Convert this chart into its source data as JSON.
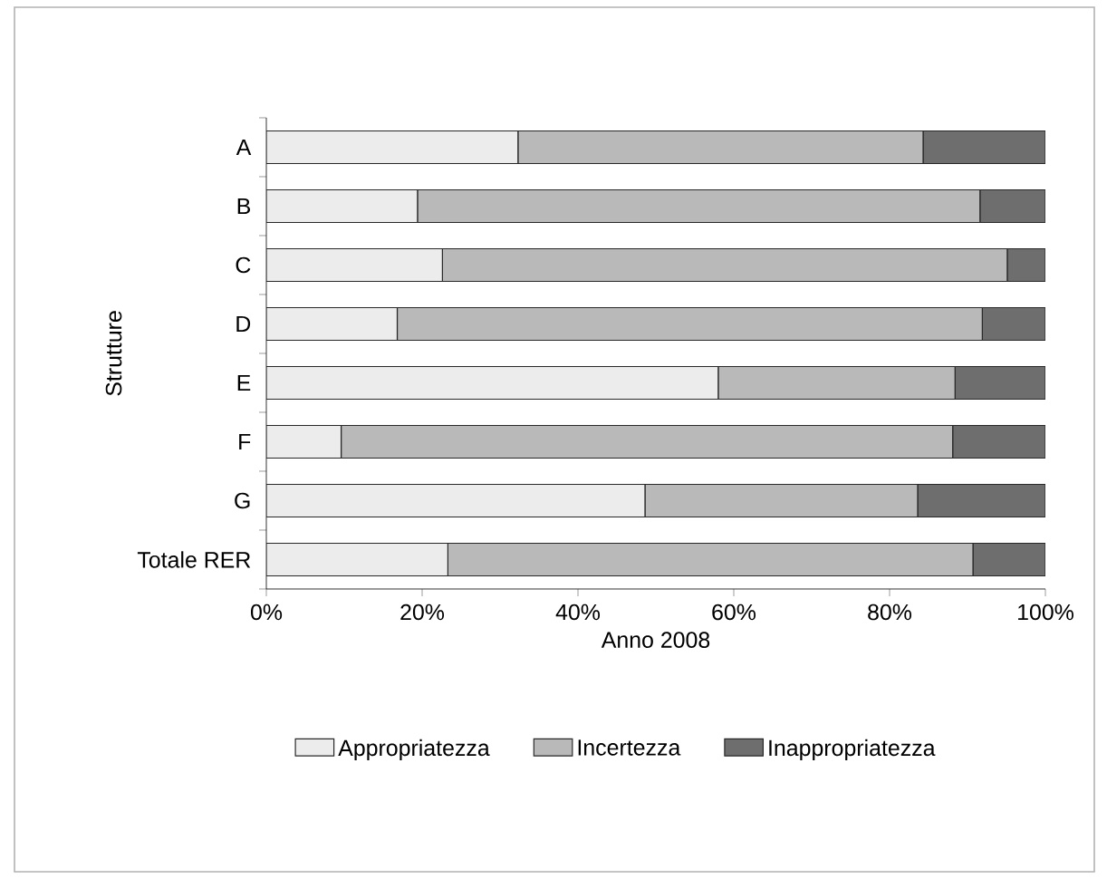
{
  "chart_data": {
    "type": "bar",
    "orientation": "horizontal",
    "stacked": true,
    "xlabel": "Anno 2008",
    "ylabel": "Strutture",
    "categories": [
      "A",
      "B",
      "C",
      "D",
      "E",
      "F",
      "G",
      "Totale RER"
    ],
    "series": [
      {
        "name": "Appropriatezza",
        "color": "#ececec",
        "values": [
          32.3,
          19.4,
          22.6,
          16.8,
          58.0,
          9.6,
          48.6,
          23.3
        ]
      },
      {
        "name": "Incertezza",
        "color": "#b9b9b9",
        "values": [
          52.0,
          72.2,
          72.5,
          75.1,
          30.4,
          78.5,
          35.0,
          67.4
        ]
      },
      {
        "name": "Inappropriatezza",
        "color": "#6e6e6e",
        "values": [
          15.7,
          8.4,
          4.9,
          8.1,
          11.6,
          11.9,
          16.4,
          9.3
        ]
      }
    ],
    "xlim": [
      0,
      100
    ],
    "xticks": [
      {
        "value": 0,
        "label": "0%"
      },
      {
        "value": 20,
        "label": "20%"
      },
      {
        "value": 40,
        "label": "40%"
      },
      {
        "value": 60,
        "label": "60%"
      },
      {
        "value": 80,
        "label": "80%"
      },
      {
        "value": 100,
        "label": "100%"
      }
    ],
    "legend": "bottom"
  }
}
